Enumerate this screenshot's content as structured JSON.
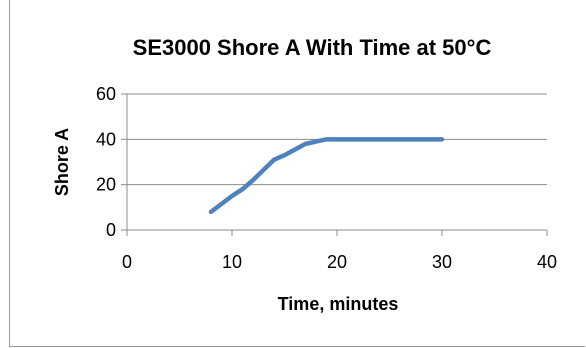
{
  "chart_data": {
    "type": "line",
    "title": "SE3000 Shore A With Time at 50°C",
    "xlabel": "Time, minutes",
    "ylabel": "Shore A",
    "xlim": [
      0,
      40
    ],
    "ylim": [
      0,
      60
    ],
    "xticks": [
      "0",
      "10",
      "20",
      "30",
      "40"
    ],
    "yticks": [
      "0",
      "20",
      "40",
      "60"
    ],
    "grid": "horizontal",
    "legend": "none",
    "series": [
      {
        "color": "#4F81BD",
        "x": [
          8,
          10,
          11,
          12,
          13,
          14,
          15,
          16,
          17,
          18,
          19,
          20,
          22,
          25,
          28,
          30
        ],
        "y": [
          8,
          15,
          18,
          22,
          26.5,
          31,
          33,
          35.5,
          38,
          39,
          40,
          40,
          40,
          40,
          40,
          40
        ]
      }
    ]
  }
}
